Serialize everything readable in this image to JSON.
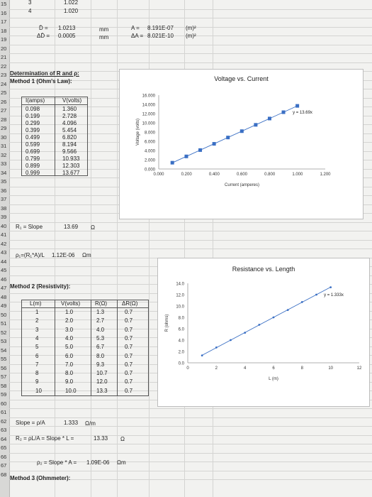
{
  "rows": [
    "15",
    "16",
    "17",
    "18",
    "19",
    "20",
    "21",
    "22",
    "23",
    "24",
    "25",
    "26",
    "27",
    "28",
    "29",
    "30",
    "31",
    "32",
    "33",
    "34",
    "35",
    "36",
    "37",
    "38",
    "39",
    "40",
    "41",
    "42",
    "43",
    "44",
    "45",
    "46",
    "47",
    "48",
    "49",
    "50",
    "51",
    "52",
    "53",
    "54",
    "55",
    "56",
    "57",
    "58",
    "59",
    "60",
    "61",
    "62",
    "63",
    "64",
    "65",
    "66",
    "67",
    "68"
  ],
  "top": {
    "r15": [
      "3",
      "1.022"
    ],
    "r16": [
      "4",
      "1.020"
    ],
    "d_label": "D̄ =",
    "d_value": "1.0213",
    "d_unit": "mm",
    "dd_label": "ΔD̄ =",
    "dd_value": "0.0005",
    "dd_unit": "mm",
    "a_label": "A =",
    "a_value": "8.191E-07",
    "a_unit": "(m)²",
    "da_label": "ΔA =",
    "da_value": "8.021E-10",
    "da_unit": "(m)²"
  },
  "section1": {
    "title": "Determination of R and ρ:",
    "method1": "Method 1 (Ohm's Law):",
    "col_i": "I(amps)",
    "col_v": "V(volts)",
    "rows": [
      [
        "0.098",
        "1.360"
      ],
      [
        "0.199",
        "2.728"
      ],
      [
        "0.299",
        "4.096"
      ],
      [
        "0.399",
        "5.454"
      ],
      [
        "0.499",
        "6.820"
      ],
      [
        "0.599",
        "8.194"
      ],
      [
        "0.699",
        "9.566"
      ],
      [
        "0.799",
        "10.933"
      ],
      [
        "0.899",
        "12.303"
      ],
      [
        "0.999",
        "13.677"
      ]
    ],
    "r1_label": "R₁ = Slope",
    "r1_value": "13.69",
    "r1_unit": "Ω",
    "rho1_label": "ρ₁=(R₁*A)/L",
    "rho1_value": "1.12E-06",
    "rho1_unit": "Ωm"
  },
  "section2": {
    "method2": "Method 2 (Resistivity):",
    "headers": [
      "L(m)",
      "V(volts)",
      "R(Ω)",
      "ΔR(Ω)"
    ],
    "rows": [
      [
        "1",
        "1.0",
        "1.3",
        "0.7"
      ],
      [
        "2",
        "2.0",
        "2.7",
        "0.7"
      ],
      [
        "3",
        "3.0",
        "4.0",
        "0.7"
      ],
      [
        "4",
        "4.0",
        "5.3",
        "0.7"
      ],
      [
        "5",
        "5.0",
        "6.7",
        "0.7"
      ],
      [
        "6",
        "6.0",
        "8.0",
        "0.7"
      ],
      [
        "7",
        "7.0",
        "9.3",
        "0.7"
      ],
      [
        "8",
        "8.0",
        "10.7",
        "0.7"
      ],
      [
        "9",
        "9.0",
        "12.0",
        "0.7"
      ],
      [
        "10",
        "10.0",
        "13.3",
        "0.7"
      ]
    ],
    "slope_label": "Slope = ρ/A",
    "slope_value": "1.333",
    "slope_unit": "Ω/m",
    "r2_label": "R₂ = ρL/A = Slope * L =",
    "r2_value": "13.33",
    "r2_unit": "Ω",
    "rho2_label": "ρ₂ = Slope * A =",
    "rho2_value": "1.09E-06",
    "rho2_unit": "Ωm",
    "method3": "Method 3 (Ohmmeter):"
  },
  "chart_data": [
    {
      "type": "scatter",
      "title": "Voltage vs. Current",
      "xlabel": "Current (amperes)",
      "ylabel": "Voltage (volts)",
      "trendline_label": "y = 13.69x",
      "xlim": [
        0,
        1.2
      ],
      "ylim": [
        0,
        16
      ],
      "xticks": [
        "0.000",
        "0.200",
        "0.400",
        "0.600",
        "0.800",
        "1.000",
        "1.200"
      ],
      "yticks": [
        "0.000",
        "2.000",
        "4.000",
        "6.000",
        "8.000",
        "10.000",
        "12.000",
        "14.000",
        "16.000"
      ],
      "x": [
        0.098,
        0.199,
        0.299,
        0.399,
        0.499,
        0.599,
        0.699,
        0.799,
        0.899,
        0.999
      ],
      "y": [
        1.36,
        2.728,
        4.096,
        5.454,
        6.82,
        8.194,
        9.566,
        10.933,
        12.303,
        13.677
      ],
      "marker_color": "#3a6fc4",
      "line_color": "#3a6fc4"
    },
    {
      "type": "scatter",
      "title": "Resistance vs. Length",
      "xlabel": "L (m)",
      "ylabel": "R (ohms)",
      "trendline_label": "y = 1.333x",
      "xlim": [
        0,
        12
      ],
      "ylim": [
        0,
        14
      ],
      "xticks": [
        "0",
        "2",
        "4",
        "6",
        "8",
        "10",
        "12"
      ],
      "yticks": [
        "0.0",
        "2.0",
        "4.0",
        "6.0",
        "8.0",
        "10.0",
        "12.0",
        "14.0"
      ],
      "x": [
        1,
        2,
        3,
        4,
        5,
        6,
        7,
        8,
        9,
        10
      ],
      "y": [
        1.3,
        2.7,
        4.0,
        5.3,
        6.7,
        8.0,
        9.3,
        10.7,
        12.0,
        13.3
      ],
      "marker_color": "#3a6fc4",
      "line_color": "#3a6fc4"
    }
  ]
}
